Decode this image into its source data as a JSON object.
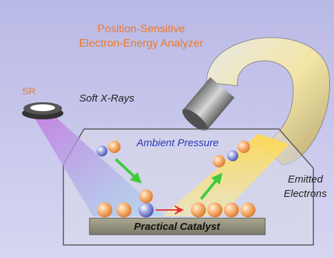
{
  "analyzer": {
    "label_lines": [
      "Position-Sensitive",
      "Electron-Energy Analyzer"
    ]
  },
  "source": {
    "label": "SR",
    "beam_label": "Soft X-Rays"
  },
  "chamber": {
    "label": "Ambient Pressure"
  },
  "emission": {
    "label_lines": [
      "Emitted",
      "Electrons"
    ]
  },
  "sample": {
    "label": "Practical Catalyst"
  }
}
